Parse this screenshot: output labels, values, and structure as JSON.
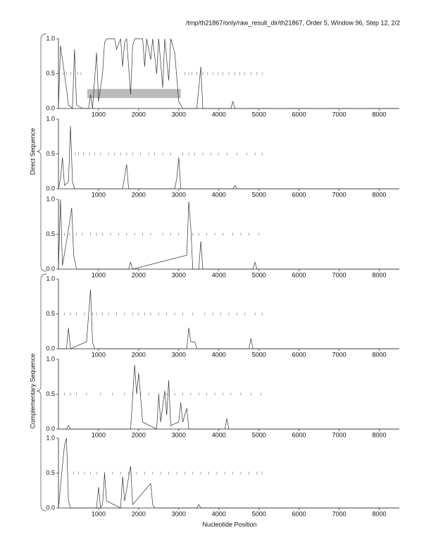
{
  "header": {
    "title": "/tmp/th21867/only/raw_result_dir/th21867, Order 5, Window 96, Step 12, 2/2",
    "direct": "Direct Sequence",
    "complementary": "Complementary Sequence",
    "xlabel": "Nucleotide Position"
  },
  "chart_data": [
    {
      "type": "line",
      "color": "#333333",
      "xlim": [
        0,
        8500
      ],
      "ylim": [
        0,
        1
      ],
      "xticks": [
        1000,
        2000,
        3000,
        4000,
        5000,
        6000,
        7000,
        8000
      ],
      "yticks": [
        {
          "value": 0,
          "label": "0.0"
        },
        0.5,
        {
          "value": 1,
          "label": "1.0"
        }
      ],
      "x": [
        0,
        50,
        150,
        250,
        350,
        400,
        450,
        600,
        750,
        800,
        850,
        950,
        1000,
        1100,
        1150,
        1200,
        1400,
        1450,
        1550,
        1600,
        1650,
        1700,
        1800,
        1850,
        1900,
        2100,
        2150,
        2200,
        2300,
        2350,
        2450,
        2500,
        2600,
        2650,
        2750,
        2800,
        2900,
        3000,
        3100,
        3450,
        3550,
        3600,
        4300,
        4350,
        4400,
        8500
      ],
      "values": [
        0,
        0.9,
        0.5,
        0.05,
        0,
        0.85,
        0.05,
        0,
        0,
        0.2,
        0,
        0.8,
        0.1,
        0.5,
        0.95,
        1,
        1,
        0.85,
        1,
        0.6,
        0.95,
        1,
        0.2,
        0.9,
        1,
        1,
        0.6,
        1,
        0.7,
        1,
        0.5,
        1,
        0.3,
        1,
        0.4,
        1,
        0.8,
        0.1,
        0,
        0,
        0.6,
        0,
        0,
        0.1,
        0,
        0
      ],
      "marks": [
        120,
        200,
        310,
        480,
        560,
        3150,
        3250,
        3330,
        3450,
        3600,
        3720,
        3850,
        3980,
        4100,
        4250,
        4400,
        4520,
        4650,
        4800,
        4950,
        5080
      ],
      "box": {
        "x": [
          720,
          3050
        ],
        "y": [
          0.15,
          0.28
        ]
      }
    },
    {
      "type": "line",
      "color": "#333333",
      "xlim": [
        0,
        8500
      ],
      "ylim": [
        0,
        1
      ],
      "xticks": [
        1000,
        2000,
        3000,
        4000,
        5000,
        6000,
        7000,
        8000
      ],
      "yticks": [
        {
          "value": 0,
          "label": "0.0"
        },
        0.5,
        {
          "value": 1,
          "label": "1.0"
        }
      ],
      "x": [
        0,
        50,
        100,
        150,
        250,
        300,
        350,
        400,
        1600,
        1700,
        1750,
        2900,
        2950,
        3000,
        3050,
        4350,
        4400,
        4450,
        8500
      ],
      "values": [
        0,
        0.15,
        0.45,
        0.05,
        0.1,
        0.9,
        0.1,
        0,
        0,
        0.35,
        0,
        0,
        0.15,
        0.45,
        0,
        0,
        0.05,
        0,
        0
      ],
      "marks": [
        420,
        500,
        620,
        780,
        900,
        1050,
        1250,
        1400,
        1550,
        1700,
        1850,
        2050,
        2250,
        2400,
        2600,
        2800,
        3100,
        3250,
        3400,
        3600,
        3800,
        4000,
        4200,
        4450,
        4700,
        4900,
        5080
      ]
    },
    {
      "type": "line",
      "color": "#333333",
      "xlim": [
        0,
        8500
      ],
      "ylim": [
        0,
        1
      ],
      "xticks": [
        1000,
        2000,
        3000,
        4000,
        5000,
        6000,
        7000,
        8000
      ],
      "yticks": [
        {
          "value": 0,
          "label": "0.0"
        },
        0.5,
        {
          "value": 1,
          "label": "1.0"
        }
      ],
      "x": [
        0,
        50,
        100,
        300,
        330,
        380,
        450,
        1750,
        1800,
        1850,
        3200,
        3250,
        3300,
        3350,
        3500,
        3550,
        3600,
        4850,
        4900,
        4950,
        8500
      ],
      "values": [
        0,
        1,
        0.05,
        0.75,
        0.88,
        0.2,
        0,
        0,
        0.1,
        0,
        0.2,
        0.97,
        0.6,
        0,
        0,
        0.4,
        0,
        0,
        0.1,
        0,
        0
      ],
      "marks": [
        150,
        280,
        450,
        600,
        800,
        950,
        1100,
        1300,
        1500,
        1700,
        1900,
        2100,
        2300,
        2600,
        2800,
        3000,
        3350,
        3500,
        3700,
        3900,
        4100,
        4350,
        4550,
        4750,
        5000
      ]
    },
    {
      "type": "line",
      "color": "#333333",
      "xlim": [
        0,
        8500
      ],
      "ylim": [
        0,
        1
      ],
      "xticks": [
        1000,
        2000,
        3000,
        4000,
        5000,
        6000,
        7000,
        8000
      ],
      "yticks": [
        {
          "value": 0,
          "label": "0.0"
        },
        0.5,
        {
          "value": 1,
          "label": "1.0"
        }
      ],
      "x": [
        0,
        200,
        250,
        300,
        700,
        800,
        850,
        900,
        3200,
        3250,
        3300,
        3400,
        3450,
        4750,
        4800,
        4850,
        8500
      ],
      "values": [
        0,
        0,
        0.3,
        0,
        0.1,
        0.85,
        0.1,
        0,
        0,
        0.3,
        0.1,
        0.1,
        0,
        0,
        0.15,
        0,
        0
      ],
      "marks": [
        150,
        300,
        450,
        650,
        850,
        950,
        1100,
        1250,
        1450,
        1650,
        1850,
        2000,
        2150,
        2300,
        2500,
        2700,
        2900,
        3100,
        3350,
        3650,
        3850,
        4050,
        4250,
        4450,
        4650,
        4900,
        5080
      ]
    },
    {
      "type": "line",
      "color": "#333333",
      "xlim": [
        0,
        8500
      ],
      "ylim": [
        0,
        1
      ],
      "xticks": [
        1000,
        2000,
        3000,
        4000,
        5000,
        6000,
        7000,
        8000
      ],
      "yticks": [
        {
          "value": 0,
          "label": "0.0"
        },
        0.5,
        {
          "value": 1,
          "label": "1.0"
        }
      ],
      "x": [
        0,
        200,
        250,
        300,
        1800,
        1900,
        1950,
        2000,
        2100,
        2450,
        2500,
        2550,
        2650,
        2700,
        2750,
        2800,
        3000,
        3050,
        3100,
        3200,
        3250,
        4150,
        4200,
        4250,
        8500
      ],
      "values": [
        0,
        0,
        0.05,
        0,
        0,
        0.92,
        0.5,
        0.8,
        0.1,
        0,
        0.5,
        0.1,
        0.55,
        0.2,
        0.7,
        0.05,
        0.1,
        0.38,
        0.1,
        0.3,
        0,
        0,
        0.15,
        0,
        0
      ],
      "marks": [
        150,
        300,
        450,
        700,
        1050,
        1350,
        1650,
        1850,
        2050,
        2250,
        2500,
        2700,
        2900,
        3100,
        3300,
        3500,
        3700,
        3900,
        4100,
        4300,
        4550,
        4800,
        5050
      ]
    },
    {
      "type": "line",
      "color": "#333333",
      "xlim": [
        0,
        8500
      ],
      "ylim": [
        0,
        1
      ],
      "xticks": [
        1000,
        2000,
        3000,
        4000,
        5000,
        6000,
        7000,
        8000
      ],
      "yticks": [
        {
          "value": 0,
          "label": "0.0"
        },
        0.5,
        {
          "value": 1,
          "label": "1.0"
        }
      ],
      "x": [
        0,
        150,
        200,
        250,
        300,
        950,
        1000,
        1050,
        1100,
        1150,
        1200,
        1550,
        1600,
        1650,
        1800,
        1850,
        2300,
        2350,
        2400,
        3450,
        3500,
        3550,
        8500
      ],
      "values": [
        0,
        0.9,
        1,
        0.1,
        0,
        0,
        0.3,
        0,
        0.05,
        0.5,
        0.1,
        0,
        0.45,
        0.1,
        0.6,
        0.05,
        0.35,
        0.05,
        0,
        0,
        0.05,
        0,
        0
      ],
      "marks": [
        380,
        500,
        650,
        800,
        950,
        1150,
        1350,
        1550,
        1750,
        1950,
        2150,
        2350,
        2550,
        2750,
        2950,
        3150,
        3350,
        3550,
        3750,
        3950,
        4150,
        4350,
        4550,
        4750,
        4950,
        5080
      ]
    }
  ]
}
